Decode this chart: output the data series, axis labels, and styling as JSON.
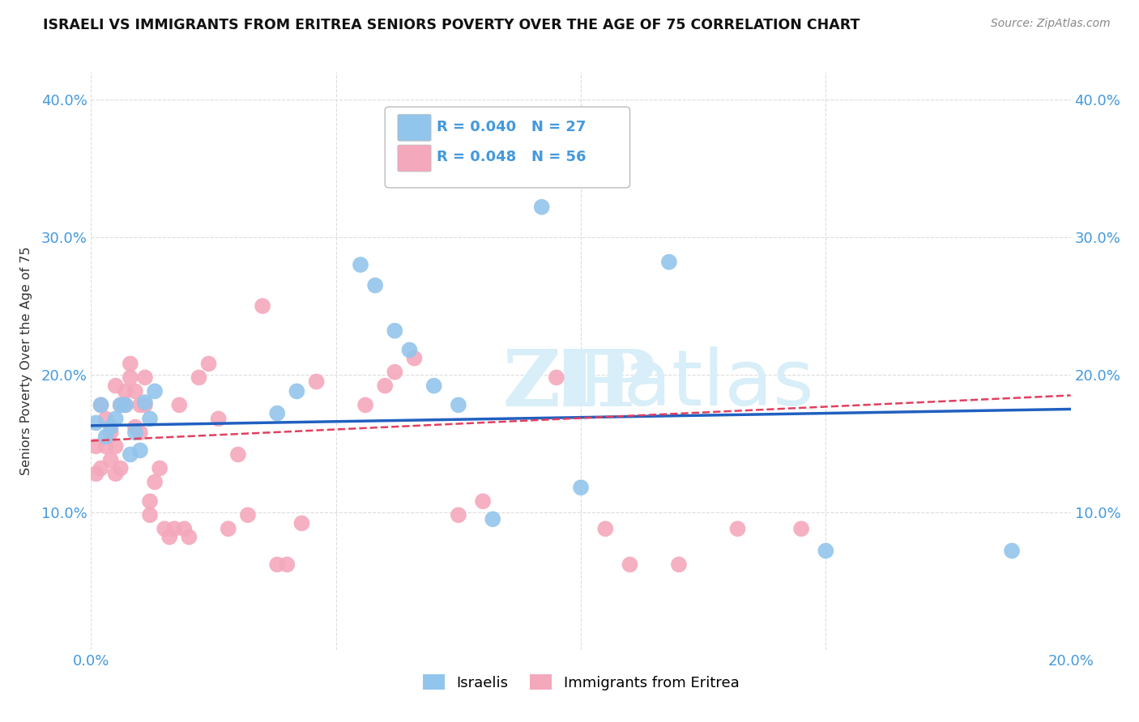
{
  "title": "ISRAELI VS IMMIGRANTS FROM ERITREA SENIORS POVERTY OVER THE AGE OF 75 CORRELATION CHART",
  "source": "Source: ZipAtlas.com",
  "ylabel": "Seniors Poverty Over the Age of 75",
  "xlim": [
    0.0,
    0.2
  ],
  "ylim": [
    0.0,
    0.42
  ],
  "xtick_vals": [
    0.0,
    0.05,
    0.1,
    0.15,
    0.2
  ],
  "xtick_labels": [
    "0.0%",
    "",
    "",
    "",
    "20.0%"
  ],
  "ytick_vals": [
    0.0,
    0.1,
    0.2,
    0.3,
    0.4
  ],
  "ytick_labels": [
    "",
    "10.0%",
    "20.0%",
    "30.0%",
    "40.0%"
  ],
  "israeli_R": 0.04,
  "israeli_N": 27,
  "eritrea_R": 0.048,
  "eritrea_N": 56,
  "israeli_color": "#92C5EC",
  "eritrea_color": "#F4A8BC",
  "israeli_line_color": "#2060C0",
  "eritrea_line_color": "#E04060",
  "background_color": "#FFFFFF",
  "grid_color": "#DDDDDD",
  "axis_label_color": "#4499DD",
  "title_color": "#111111",
  "source_color": "#888888",
  "watermark_color": "#D8EEF8",
  "israeli_x": [
    0.001,
    0.002,
    0.003,
    0.004,
    0.005,
    0.006,
    0.007,
    0.008,
    0.009,
    0.01,
    0.011,
    0.012,
    0.013,
    0.038,
    0.042,
    0.055,
    0.058,
    0.062,
    0.065,
    0.07,
    0.075,
    0.082,
    0.092,
    0.1,
    0.118,
    0.15,
    0.188
  ],
  "israeli_y": [
    0.165,
    0.178,
    0.155,
    0.162,
    0.168,
    0.178,
    0.178,
    0.142,
    0.158,
    0.145,
    0.18,
    0.168,
    0.188,
    0.172,
    0.188,
    0.28,
    0.265,
    0.232,
    0.218,
    0.192,
    0.178,
    0.095,
    0.322,
    0.118,
    0.282,
    0.072,
    0.072
  ],
  "eritrea_x": [
    0.001,
    0.001,
    0.002,
    0.002,
    0.003,
    0.003,
    0.004,
    0.004,
    0.005,
    0.005,
    0.005,
    0.006,
    0.006,
    0.007,
    0.007,
    0.008,
    0.008,
    0.009,
    0.009,
    0.01,
    0.01,
    0.011,
    0.011,
    0.012,
    0.012,
    0.013,
    0.014,
    0.015,
    0.016,
    0.017,
    0.018,
    0.019,
    0.02,
    0.022,
    0.024,
    0.026,
    0.028,
    0.03,
    0.032,
    0.035,
    0.038,
    0.04,
    0.043,
    0.046,
    0.056,
    0.06,
    0.062,
    0.066,
    0.075,
    0.08,
    0.095,
    0.105,
    0.11,
    0.12,
    0.132,
    0.145
  ],
  "eritrea_y": [
    0.128,
    0.148,
    0.132,
    0.178,
    0.148,
    0.168,
    0.138,
    0.158,
    0.128,
    0.148,
    0.192,
    0.132,
    0.178,
    0.178,
    0.188,
    0.198,
    0.208,
    0.162,
    0.188,
    0.158,
    0.178,
    0.178,
    0.198,
    0.098,
    0.108,
    0.122,
    0.132,
    0.088,
    0.082,
    0.088,
    0.178,
    0.088,
    0.082,
    0.198,
    0.208,
    0.168,
    0.088,
    0.142,
    0.098,
    0.25,
    0.062,
    0.062,
    0.092,
    0.195,
    0.178,
    0.192,
    0.202,
    0.212,
    0.098,
    0.108,
    0.198,
    0.088,
    0.062,
    0.062,
    0.088,
    0.088
  ]
}
